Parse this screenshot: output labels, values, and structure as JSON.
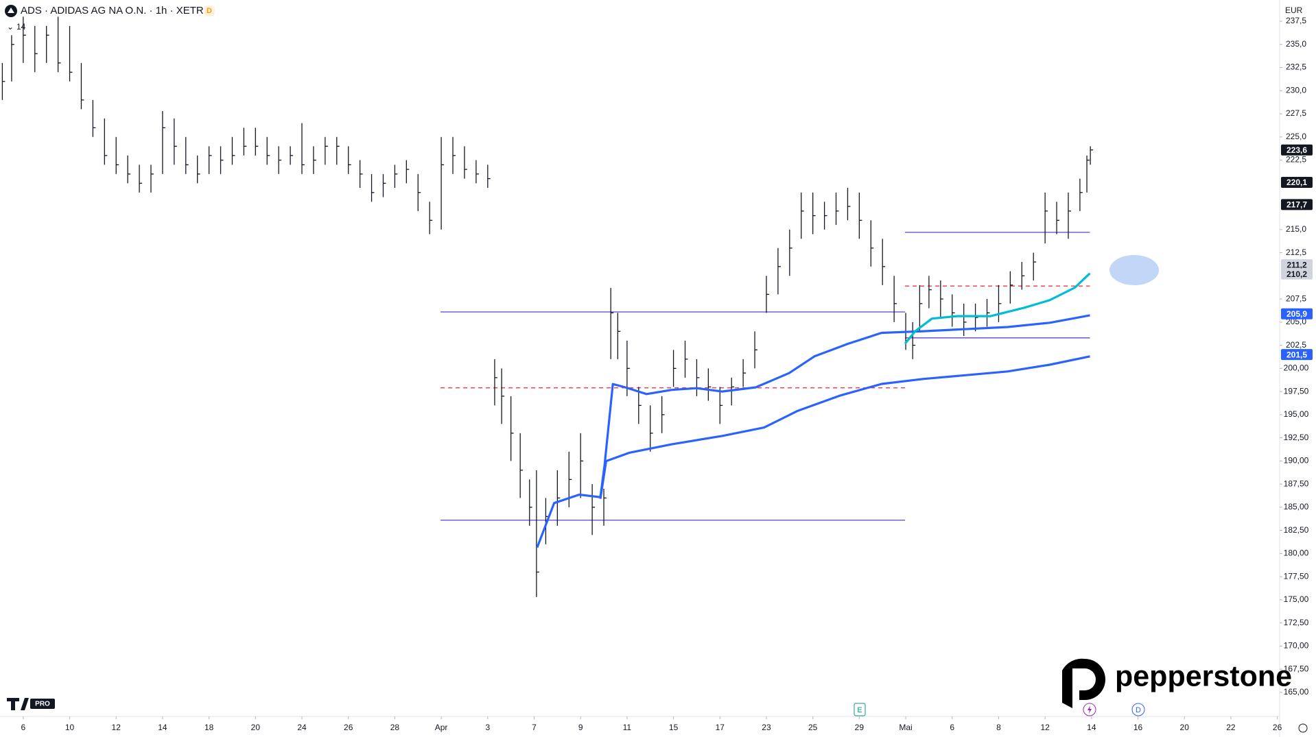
{
  "chart_data": {
    "type": "ohlc",
    "title": "ADS · ADIDAS AG NA O.N. · 1h · XETR",
    "badge": "D",
    "indicator_label": "14",
    "currency": "EUR",
    "brand": "pepperstone",
    "platform_badge": "PRO",
    "events": [
      "E",
      "D"
    ],
    "xlim": [
      -1,
      54.1
    ],
    "ylim": [
      162.4,
      239.8
    ],
    "grid": false,
    "bar_color": "#131722",
    "xticks": [
      {
        "value": 0,
        "label": "6"
      },
      {
        "value": 2,
        "label": "10"
      },
      {
        "value": 4,
        "label": "12"
      },
      {
        "value": 6,
        "label": "14"
      },
      {
        "value": 8,
        "label": "18"
      },
      {
        "value": 10,
        "label": "20"
      },
      {
        "value": 12,
        "label": "24"
      },
      {
        "value": 14,
        "label": "26"
      },
      {
        "value": 16,
        "label": "28"
      },
      {
        "value": 18,
        "label": "Apr"
      },
      {
        "value": 20,
        "label": "3"
      },
      {
        "value": 22,
        "label": "7"
      },
      {
        "value": 24,
        "label": "9"
      },
      {
        "value": 26,
        "label": "11"
      },
      {
        "value": 28,
        "label": "15"
      },
      {
        "value": 30,
        "label": "17"
      },
      {
        "value": 32,
        "label": "23"
      },
      {
        "value": 34,
        "label": "25"
      },
      {
        "value": 36,
        "label": "29"
      },
      {
        "value": 38,
        "label": "Mai"
      },
      {
        "value": 40,
        "label": "6"
      },
      {
        "value": 42,
        "label": "8"
      },
      {
        "value": 44,
        "label": "12"
      },
      {
        "value": 46,
        "label": "14"
      },
      {
        "value": 48,
        "label": "16"
      },
      {
        "value": 50,
        "label": "20"
      },
      {
        "value": 52,
        "label": "22"
      },
      {
        "value": 54,
        "label": "26"
      }
    ],
    "yticks": [
      {
        "value": 237.5,
        "label": "237,5"
      },
      {
        "value": 235,
        "label": "235,0"
      },
      {
        "value": 232.5,
        "label": "232,5"
      },
      {
        "value": 230,
        "label": "230,0"
      },
      {
        "value": 227.5,
        "label": "227,5"
      },
      {
        "value": 225,
        "label": "225,0"
      },
      {
        "value": 222.5,
        "label": "222,5"
      },
      {
        "value": 215,
        "label": "215,0"
      },
      {
        "value": 212.5,
        "label": "212,5"
      },
      {
        "value": 207.5,
        "label": "207,5"
      },
      {
        "value": 205,
        "label": "205,0"
      },
      {
        "value": 202.5,
        "label": "202,5"
      },
      {
        "value": 200,
        "label": "200,00"
      },
      {
        "value": 197.5,
        "label": "197,50"
      },
      {
        "value": 195,
        "label": "195,00"
      },
      {
        "value": 192.5,
        "label": "192,50"
      },
      {
        "value": 190,
        "label": "190,00"
      },
      {
        "value": 187.5,
        "label": "187,50"
      },
      {
        "value": 185,
        "label": "185,00"
      },
      {
        "value": 182.5,
        "label": "182,50"
      },
      {
        "value": 180,
        "label": "180,00"
      },
      {
        "value": 177.5,
        "label": "177,50"
      },
      {
        "value": 175,
        "label": "175,00"
      },
      {
        "value": 172.5,
        "label": "172,50"
      },
      {
        "value": 170,
        "label": "170,00"
      },
      {
        "value": 167.5,
        "label": "167,50"
      },
      {
        "value": 165,
        "label": "165,00"
      }
    ],
    "price_labels": [
      {
        "value": 223.6,
        "label": "223,6",
        "color": "#131722"
      },
      {
        "value": 220.1,
        "label": "220,1",
        "color": "#131722"
      },
      {
        "value": 217.7,
        "label": "217,7",
        "color": "#131722"
      },
      {
        "value": 211.2,
        "label": "211,2",
        "color": "#b2b5be"
      },
      {
        "value": 210.2,
        "label": "210,2",
        "color": "#b2b5be"
      },
      {
        "value": 205.9,
        "label": "205,9",
        "color": "#2962ff"
      },
      {
        "value": 201.5,
        "label": "201,5",
        "color": "#2962ff"
      }
    ],
    "bars": {
      "x": [
        -0.9,
        -0.5,
        0,
        0.5,
        1,
        1.5,
        2,
        2.5,
        3,
        3.5,
        4,
        4.5,
        5,
        5.5,
        6,
        6.5,
        7,
        7.5,
        8,
        8.5,
        9,
        9.5,
        10,
        10.5,
        11,
        11.5,
        12,
        12.5,
        13,
        13.5,
        14,
        14.5,
        15,
        15.5,
        16,
        16.5,
        17,
        17.5,
        18,
        18.5,
        19,
        19.5,
        20,
        20.3,
        20.6,
        21,
        21.4,
        21.8,
        22.1,
        22.5,
        23,
        23.5,
        24,
        24.5,
        25,
        25.3,
        25.6,
        26,
        26.5,
        27,
        27.5,
        28,
        28.5,
        29,
        29.5,
        30,
        30.5,
        31,
        31.5,
        32,
        32.5,
        33,
        33.5,
        34,
        34.5,
        35,
        35.5,
        36,
        36.5,
        37,
        37.5,
        38,
        38.3,
        38.6,
        39,
        39.5,
        40,
        40.5,
        41,
        41.5,
        42,
        42.5,
        43,
        43.5,
        44,
        44.5,
        45,
        45.5,
        45.8,
        45.95
      ],
      "high": [
        233,
        236,
        238,
        237,
        237,
        238,
        237,
        233,
        229,
        227,
        225,
        223,
        222,
        222,
        227.8,
        227,
        225,
        223,
        224,
        224,
        225,
        226,
        226,
        225,
        224,
        224,
        226.5,
        224,
        225,
        225,
        224,
        222.5,
        221,
        221,
        222,
        222.5,
        221,
        218,
        225,
        225,
        224,
        222.5,
        222,
        201,
        200,
        197,
        193,
        188,
        189,
        186,
        189,
        191,
        193,
        187.5,
        187,
        208.7,
        206,
        203,
        198,
        196,
        197,
        202,
        203,
        201,
        200,
        198,
        199,
        201,
        204,
        210,
        213,
        215,
        219,
        219,
        218,
        219,
        219.5,
        219,
        216,
        214,
        210,
        206,
        205,
        209,
        210,
        209.5,
        208,
        207,
        207,
        207.5,
        209,
        210.5,
        211.5,
        212.5,
        219,
        218,
        219,
        220.5,
        223,
        224
      ],
      "low": [
        229,
        231,
        233,
        232,
        233,
        232,
        231,
        228,
        225,
        222,
        221,
        220,
        219,
        219,
        221,
        222,
        221,
        220,
        221,
        221,
        222,
        223,
        223,
        222,
        221,
        222,
        221,
        221,
        222,
        222,
        221,
        219.5,
        218,
        218.5,
        219.5,
        220,
        217,
        214.5,
        215,
        221,
        220.5,
        220,
        219.5,
        196,
        194,
        190,
        186,
        183,
        175.3,
        181,
        183,
        185,
        186,
        182,
        183,
        201,
        201,
        197,
        194,
        191,
        193,
        198,
        199,
        197,
        196.5,
        194,
        196,
        198,
        200,
        206,
        208,
        210,
        214,
        214.5,
        215,
        215.5,
        216,
        214,
        211,
        209,
        205,
        202,
        201,
        204,
        206.5,
        205.5,
        204.5,
        203.5,
        204,
        204.5,
        205,
        207,
        208.5,
        209.5,
        213.5,
        214.5,
        214,
        217,
        219,
        222
      ],
      "close": [
        231,
        235,
        236,
        234,
        236,
        233,
        232,
        229,
        226,
        223,
        222,
        221,
        220,
        221,
        226,
        224,
        222,
        221,
        223,
        222.5,
        223,
        224,
        224,
        223,
        222.5,
        223,
        222,
        222.5,
        224,
        224,
        222,
        221,
        219,
        220,
        221,
        221.5,
        219,
        216,
        222,
        223,
        221.5,
        221,
        220.5,
        199,
        197,
        193,
        189,
        185,
        178,
        184,
        186,
        188,
        190,
        185,
        186,
        206,
        204,
        200,
        196,
        193,
        195,
        200,
        201,
        199,
        198,
        196,
        198,
        199.5,
        202,
        208,
        211,
        213,
        217,
        216.5,
        216.5,
        217,
        217.5,
        216,
        213,
        211,
        207,
        203,
        202.5,
        207,
        208.5,
        207.5,
        206,
        205,
        205.5,
        206,
        207,
        209,
        210,
        211.5,
        217,
        216,
        217,
        219,
        222.5,
        223.6
      ]
    },
    "lines": [
      {
        "color": "#2962ff",
        "x": [
          22.13,
          22.86,
          23.94,
          24.85,
          25.03,
          25.39,
          25.93,
          26.84,
          27.92,
          29.0,
          30.09,
          31.54,
          32.98,
          34.07,
          35.52,
          36.96,
          38.77,
          42.39,
          44.2,
          45.93
        ],
        "values": [
          180.65,
          185.45,
          186.36,
          186.09,
          189.53,
          198.31,
          197.95,
          197.23,
          197.68,
          197.86,
          197.5,
          197.95,
          199.49,
          201.3,
          202.66,
          203.84,
          204.02,
          204.47,
          204.93,
          205.74
        ]
      },
      {
        "color": "#2962ff",
        "x": [
          24.85,
          25.1,
          26.11,
          27.92,
          30.09,
          31.9,
          33.35,
          35.15,
          36.96,
          38.77,
          42.39,
          44.2,
          45.93
        ],
        "values": [
          185.91,
          189.98,
          190.89,
          191.8,
          192.7,
          193.61,
          195.42,
          197.05,
          198.32,
          198.86,
          199.67,
          200.4,
          201.3
        ]
      },
      {
        "color": "#00bcd4",
        "x": [
          37.97,
          38.41,
          39.13,
          40.22,
          41.66,
          43.11,
          44.2,
          45.28,
          45.93
        ],
        "values": [
          202.66,
          204.02,
          205.38,
          205.65,
          205.65,
          206.56,
          207.37,
          208.73,
          210.27
        ]
      }
    ],
    "levels": [
      {
        "price": 206.1,
        "x0": 17.97,
        "x1": 37.97,
        "color": "#5b3fd6",
        "dashed": false
      },
      {
        "price": 197.9,
        "x0": 17.97,
        "x1": 37.97,
        "color": "#f23645",
        "dashed": true
      },
      {
        "price": 183.6,
        "x0": 17.97,
        "x1": 37.97,
        "color": "#5b3fd6",
        "dashed": false
      },
      {
        "price": 214.7,
        "x0": 37.97,
        "x1": 45.93,
        "color": "#5b3fd6",
        "dashed": false
      },
      {
        "price": 208.9,
        "x0": 37.97,
        "x1": 45.93,
        "color": "#f23645",
        "dashed": true
      },
      {
        "price": 203.3,
        "x0": 37.97,
        "x1": 45.93,
        "color": "#5b3fd6",
        "dashed": false
      }
    ]
  }
}
